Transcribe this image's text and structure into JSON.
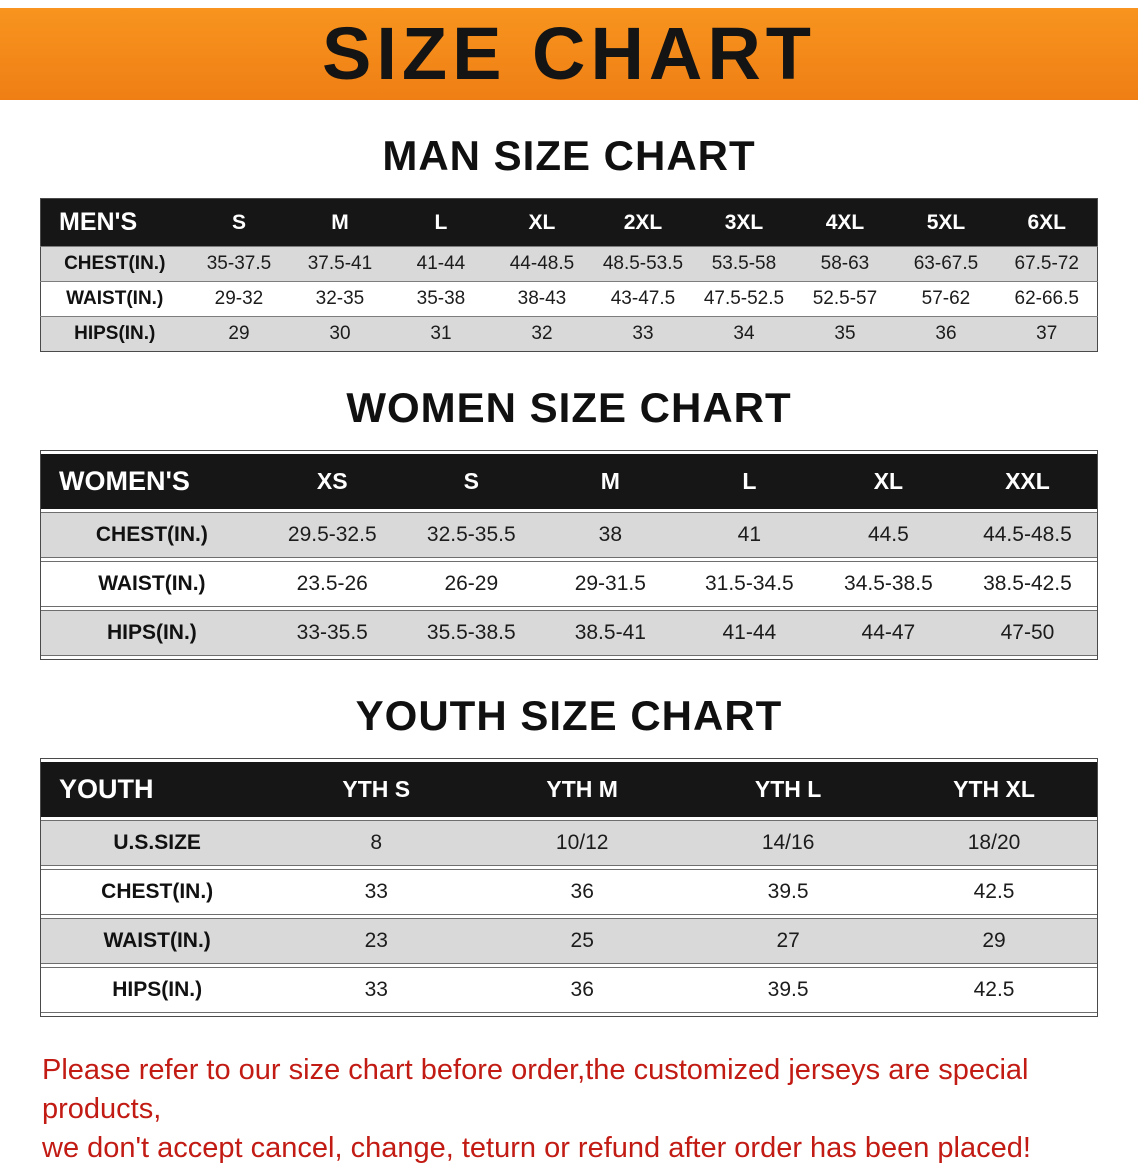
{
  "banner": {
    "title": "SIZE CHART",
    "bg_color": "#F28A1D",
    "text_color": "#141414"
  },
  "sections": [
    {
      "heading": "MAN SIZE CHART",
      "table": {
        "header": [
          "MEN'S",
          "S",
          "M",
          "L",
          "XL",
          "2XL",
          "3XL",
          "4XL",
          "5XL",
          "6XL"
        ],
        "rows": [
          [
            "CHEST(IN.)",
            "35-37.5",
            "37.5-41",
            "41-44",
            "44-48.5",
            "48.5-53.5",
            "53.5-58",
            "58-63",
            "63-67.5",
            "67.5-72"
          ],
          [
            "WAIST(IN.)",
            "29-32",
            "32-35",
            "35-38",
            "38-43",
            "43-47.5",
            "47.5-52.5",
            "52.5-57",
            "57-62",
            "62-66.5"
          ],
          [
            "HIPS(IN.)",
            "29",
            "30",
            "31",
            "32",
            "33",
            "34",
            "35",
            "36",
            "37"
          ]
        ]
      }
    },
    {
      "heading": "WOMEN SIZE CHART",
      "table": {
        "header": [
          "WOMEN'S",
          "XS",
          "S",
          "M",
          "L",
          "XL",
          "XXL"
        ],
        "rows": [
          [
            "CHEST(IN.)",
            "29.5-32.5",
            "32.5-35.5",
            "38",
            "41",
            "44.5",
            "44.5-48.5"
          ],
          [
            "WAIST(IN.)",
            "23.5-26",
            "26-29",
            "29-31.5",
            "31.5-34.5",
            "34.5-38.5",
            "38.5-42.5"
          ],
          [
            "HIPS(IN.)",
            "33-35.5",
            "35.5-38.5",
            "38.5-41",
            "41-44",
            "44-47",
            "47-50"
          ]
        ]
      }
    },
    {
      "heading": "YOUTH SIZE CHART",
      "table": {
        "header": [
          "YOUTH",
          "YTH S",
          "YTH M",
          "YTH L",
          "YTH XL"
        ],
        "rows": [
          [
            "U.S.SIZE",
            "8",
            "10/12",
            "14/16",
            "18/20"
          ],
          [
            "CHEST(IN.)",
            "33",
            "36",
            "39.5",
            "42.5"
          ],
          [
            "WAIST(IN.)",
            "23",
            "25",
            "27",
            "29"
          ],
          [
            "HIPS(IN.)",
            "33",
            "36",
            "39.5",
            "42.5"
          ]
        ]
      }
    }
  ],
  "disclaimer": {
    "text_color": "#C21B14",
    "lines": [
      "Please refer to our size chart before order,the customized jerseys are special products,",
      "we don't accept cancel, change, teturn or refund after order has been placed!"
    ]
  }
}
